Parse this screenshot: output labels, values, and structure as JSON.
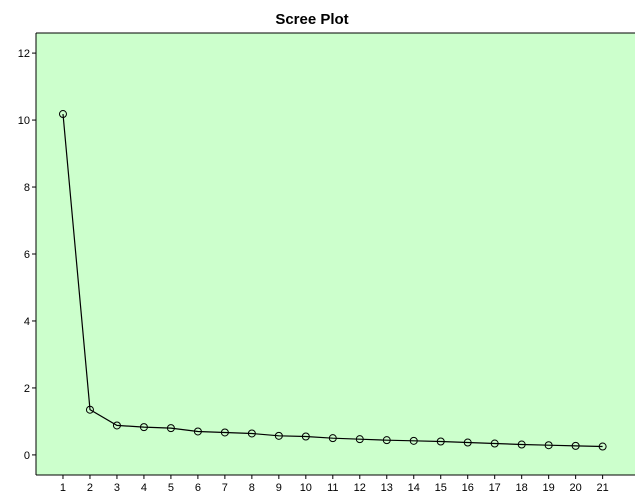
{
  "chart_data": {
    "type": "line",
    "title": "Scree Plot",
    "xlabel": "",
    "ylabel": "",
    "x": [
      1,
      2,
      3,
      4,
      5,
      6,
      7,
      8,
      9,
      10,
      11,
      12,
      13,
      14,
      15,
      16,
      17,
      18,
      19,
      20,
      21
    ],
    "series": [
      {
        "values": [
          10.18,
          1.35,
          0.88,
          0.83,
          0.8,
          0.7,
          0.67,
          0.64,
          0.57,
          0.55,
          0.5,
          0.47,
          0.44,
          0.42,
          0.4,
          0.37,
          0.34,
          0.31,
          0.29,
          0.27,
          0.25
        ]
      }
    ],
    "xlim": [
      0,
      22.2
    ],
    "ylim": [
      -0.6,
      12.6
    ],
    "yticks": [
      0,
      2,
      4,
      6,
      8,
      10,
      12
    ],
    "grid": false,
    "legend": "none",
    "colors": {
      "plot_background": "#ccffcc",
      "line": "#000000",
      "marker": "#000000"
    }
  }
}
